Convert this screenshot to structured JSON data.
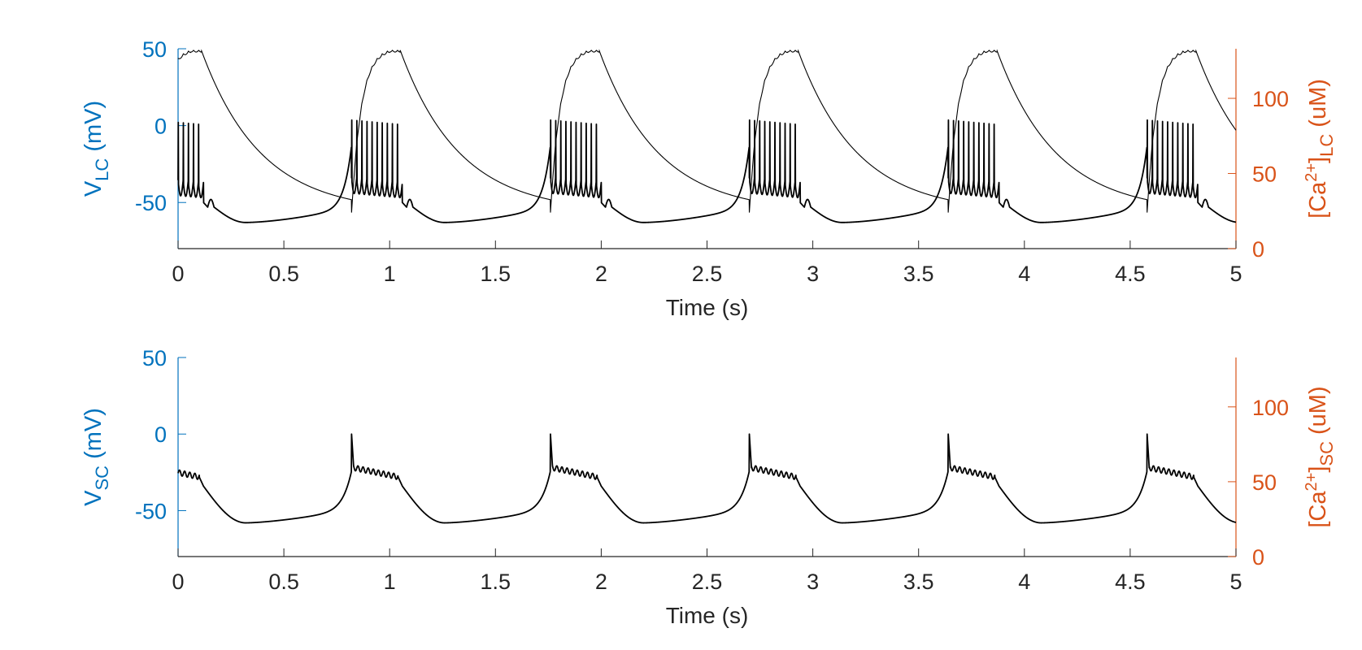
{
  "colors": {
    "left_axis": "#0072BD",
    "right_axis": "#D95319",
    "trace": "#000000",
    "axis_line": "#262626"
  },
  "chart_data": [
    {
      "type": "line",
      "panel": "top",
      "xlabel": "Time (s)",
      "ylabel_left": {
        "main": "V",
        "sub": "LC",
        "tail": " (mV)"
      },
      "ylabel_right": {
        "pre": "[Ca",
        "sup": "2+",
        "mid": "]",
        "sub": "LC",
        "tail": " (uM)"
      },
      "xlim": [
        0,
        5
      ],
      "ylim_left": [
        -80,
        50
      ],
      "ylim_right": [
        0,
        133
      ],
      "xticks": [
        0,
        0.5,
        1,
        1.5,
        2,
        2.5,
        3,
        3.5,
        4,
        4.5,
        5
      ],
      "xtick_labels": [
        "0",
        "0.5",
        "1",
        "1.5",
        "2",
        "2.5",
        "3",
        "3.5",
        "4",
        "4.5",
        "5"
      ],
      "yticks_left": [
        50,
        0,
        -50
      ],
      "ytick_labels_left": [
        "50",
        "0",
        "-50"
      ],
      "yticks_right": [
        100,
        50,
        0
      ],
      "ytick_labels_right": [
        "100",
        "50",
        "0"
      ],
      "burst_period_s": 0.94,
      "burst_onsets_s": [
        0.82,
        1.76,
        2.7,
        3.64,
        4.58
      ],
      "series": [
        {
          "axis": "left",
          "description_of_shape": "membrane potential: bursts of ~10 spikes peaking near 0 to 10 mV from a -35 mV plateau, then afterhyperpolarization to about -63 mV and slow depolarizing ramp",
          "spike_peak_mV": 5,
          "plateau_mV": -35,
          "trough_mV": -63,
          "spikes_per_burst": 10,
          "burst_duration_s": 0.24
        },
        {
          "axis": "right",
          "description_of_shape": "calcium concentration rising to about 132 uM after burst onset then decaying to about 25 uM",
          "peak_uM": 132,
          "min_uM": 24
        }
      ]
    },
    {
      "type": "line",
      "panel": "bottom",
      "xlabel": "Time (s)",
      "ylabel_left": {
        "main": "V",
        "sub": "SC",
        "tail": " (mV)"
      },
      "ylabel_right": {
        "pre": "[Ca",
        "sup": "2+",
        "mid": "]",
        "sub": "SC",
        "tail": " (uM)"
      },
      "xlim": [
        0,
        5
      ],
      "ylim_left": [
        -80,
        50
      ],
      "ylim_right": [
        0,
        133
      ],
      "xticks": [
        0,
        0.5,
        1,
        1.5,
        2,
        2.5,
        3,
        3.5,
        4,
        4.5,
        5
      ],
      "xtick_labels": [
        "0",
        "0.5",
        "1",
        "1.5",
        "2",
        "2.5",
        "3",
        "3.5",
        "4",
        "4.5",
        "5"
      ],
      "yticks_left": [
        50,
        0,
        -50
      ],
      "ytick_labels_left": [
        "50",
        "0",
        "-50"
      ],
      "yticks_right": [
        100,
        50,
        0
      ],
      "ytick_labels_right": [
        "100",
        "50",
        "0"
      ],
      "burst_period_s": 0.94,
      "burst_onsets_s": [
        0.82,
        1.76,
        2.7,
        3.64,
        4.58
      ],
      "series": [
        {
          "axis": "left",
          "description_of_shape": "membrane potential: sharp spike to 0 mV at burst onset, plateau near -22 mV with small oscillations, drop to -35 mV and slow decay to about -58 mV, then rising ramp",
          "spike_peak_mV": 0,
          "plateau_mV": -22,
          "trough_mV": -58,
          "burst_duration_s": 0.22
        }
      ]
    }
  ]
}
